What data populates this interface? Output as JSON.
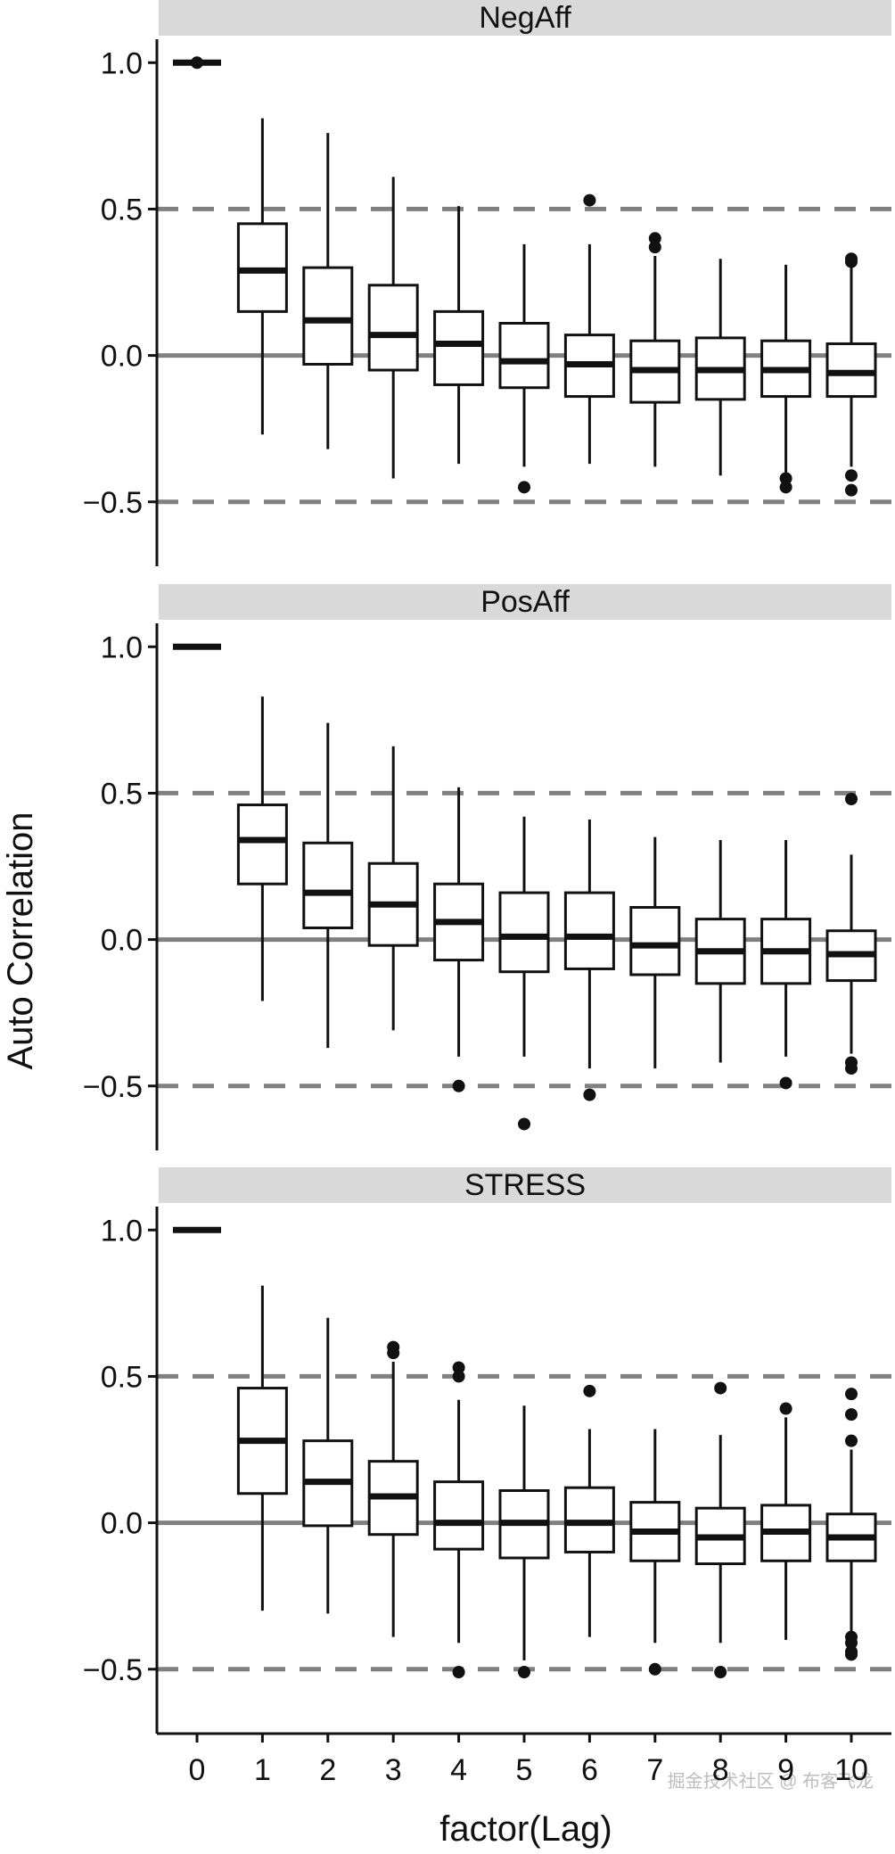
{
  "chart_data": {
    "type": "boxplot",
    "ylabel": "Auto Correlation",
    "xlabel": "factor(Lag)",
    "categories": [
      "0",
      "1",
      "2",
      "3",
      "4",
      "5",
      "6",
      "7",
      "8",
      "9",
      "10"
    ],
    "ylim": [
      -0.72,
      1.08
    ],
    "yticks": [
      -0.5,
      0.0,
      0.5,
      1.0
    ],
    "ytick_labels": [
      "−0.5",
      "0.0",
      "0.5",
      "1.0"
    ],
    "reference_lines": [
      {
        "y": 0.5,
        "style": "dashed"
      },
      {
        "y": -0.5,
        "style": "dashed"
      },
      {
        "y": 0.0,
        "style": "solid"
      }
    ],
    "panels": [
      {
        "title": "NegAff",
        "boxes": [
          {
            "lag": "0",
            "whisker_low": 1.0,
            "q1": 1.0,
            "median": 1.0,
            "q3": 1.0,
            "whisker_high": 1.0,
            "outliers": [
              1.0
            ]
          },
          {
            "lag": "1",
            "whisker_low": -0.27,
            "q1": 0.15,
            "median": 0.29,
            "q3": 0.45,
            "whisker_high": 0.81,
            "outliers": []
          },
          {
            "lag": "2",
            "whisker_low": -0.32,
            "q1": -0.03,
            "median": 0.12,
            "q3": 0.3,
            "whisker_high": 0.76,
            "outliers": []
          },
          {
            "lag": "3",
            "whisker_low": -0.42,
            "q1": -0.05,
            "median": 0.07,
            "q3": 0.24,
            "whisker_high": 0.61,
            "outliers": []
          },
          {
            "lag": "4",
            "whisker_low": -0.37,
            "q1": -0.1,
            "median": 0.04,
            "q3": 0.15,
            "whisker_high": 0.51,
            "outliers": []
          },
          {
            "lag": "5",
            "whisker_low": -0.38,
            "q1": -0.11,
            "median": -0.02,
            "q3": 0.11,
            "whisker_high": 0.38,
            "outliers": [
              -0.45
            ]
          },
          {
            "lag": "6",
            "whisker_low": -0.37,
            "q1": -0.14,
            "median": -0.03,
            "q3": 0.07,
            "whisker_high": 0.38,
            "outliers": [
              0.53
            ]
          },
          {
            "lag": "7",
            "whisker_low": -0.38,
            "q1": -0.16,
            "median": -0.05,
            "q3": 0.05,
            "whisker_high": 0.34,
            "outliers": [
              0.4,
              0.37
            ]
          },
          {
            "lag": "8",
            "whisker_low": -0.41,
            "q1": -0.15,
            "median": -0.05,
            "q3": 0.06,
            "whisker_high": 0.33,
            "outliers": []
          },
          {
            "lag": "9",
            "whisker_low": -0.4,
            "q1": -0.14,
            "median": -0.05,
            "q3": 0.05,
            "whisker_high": 0.31,
            "outliers": [
              -0.42,
              -0.45
            ]
          },
          {
            "lag": "10",
            "whisker_low": -0.38,
            "q1": -0.14,
            "median": -0.06,
            "q3": 0.04,
            "whisker_high": 0.31,
            "outliers": [
              0.32,
              0.33,
              -0.41,
              -0.46
            ]
          }
        ]
      },
      {
        "title": "PosAff",
        "boxes": [
          {
            "lag": "0",
            "whisker_low": 1.0,
            "q1": 1.0,
            "median": 1.0,
            "q3": 1.0,
            "whisker_high": 1.0,
            "outliers": []
          },
          {
            "lag": "1",
            "whisker_low": -0.21,
            "q1": 0.19,
            "median": 0.34,
            "q3": 0.46,
            "whisker_high": 0.83,
            "outliers": []
          },
          {
            "lag": "2",
            "whisker_low": -0.37,
            "q1": 0.04,
            "median": 0.16,
            "q3": 0.33,
            "whisker_high": 0.74,
            "outliers": []
          },
          {
            "lag": "3",
            "whisker_low": -0.31,
            "q1": -0.02,
            "median": 0.12,
            "q3": 0.26,
            "whisker_high": 0.66,
            "outliers": []
          },
          {
            "lag": "4",
            "whisker_low": -0.4,
            "q1": -0.07,
            "median": 0.06,
            "q3": 0.19,
            "whisker_high": 0.52,
            "outliers": [
              -0.5
            ]
          },
          {
            "lag": "5",
            "whisker_low": -0.4,
            "q1": -0.11,
            "median": 0.01,
            "q3": 0.16,
            "whisker_high": 0.42,
            "outliers": [
              -0.63
            ]
          },
          {
            "lag": "6",
            "whisker_low": -0.44,
            "q1": -0.1,
            "median": 0.01,
            "q3": 0.16,
            "whisker_high": 0.41,
            "outliers": [
              -0.53
            ]
          },
          {
            "lag": "7",
            "whisker_low": -0.44,
            "q1": -0.12,
            "median": -0.02,
            "q3": 0.11,
            "whisker_high": 0.35,
            "outliers": []
          },
          {
            "lag": "8",
            "whisker_low": -0.42,
            "q1": -0.15,
            "median": -0.04,
            "q3": 0.07,
            "whisker_high": 0.34,
            "outliers": []
          },
          {
            "lag": "9",
            "whisker_low": -0.4,
            "q1": -0.15,
            "median": -0.04,
            "q3": 0.07,
            "whisker_high": 0.34,
            "outliers": [
              -0.49
            ]
          },
          {
            "lag": "10",
            "whisker_low": -0.39,
            "q1": -0.14,
            "median": -0.05,
            "q3": 0.03,
            "whisker_high": 0.29,
            "outliers": [
              0.48,
              -0.42,
              -0.44
            ]
          }
        ]
      },
      {
        "title": "STRESS",
        "boxes": [
          {
            "lag": "0",
            "whisker_low": 1.0,
            "q1": 1.0,
            "median": 1.0,
            "q3": 1.0,
            "whisker_high": 1.0,
            "outliers": []
          },
          {
            "lag": "1",
            "whisker_low": -0.3,
            "q1": 0.1,
            "median": 0.28,
            "q3": 0.46,
            "whisker_high": 0.81,
            "outliers": []
          },
          {
            "lag": "2",
            "whisker_low": -0.31,
            "q1": -0.01,
            "median": 0.14,
            "q3": 0.28,
            "whisker_high": 0.7,
            "outliers": []
          },
          {
            "lag": "3",
            "whisker_low": -0.39,
            "q1": -0.04,
            "median": 0.09,
            "q3": 0.21,
            "whisker_high": 0.55,
            "outliers": [
              0.6,
              0.58
            ]
          },
          {
            "lag": "4",
            "whisker_low": -0.41,
            "q1": -0.09,
            "median": 0.0,
            "q3": 0.14,
            "whisker_high": 0.42,
            "outliers": [
              0.53,
              0.5,
              -0.51
            ]
          },
          {
            "lag": "5",
            "whisker_low": -0.47,
            "q1": -0.12,
            "median": 0.0,
            "q3": 0.11,
            "whisker_high": 0.4,
            "outliers": [
              -0.51
            ]
          },
          {
            "lag": "6",
            "whisker_low": -0.39,
            "q1": -0.1,
            "median": 0.0,
            "q3": 0.12,
            "whisker_high": 0.32,
            "outliers": [
              0.45
            ]
          },
          {
            "lag": "7",
            "whisker_low": -0.41,
            "q1": -0.13,
            "median": -0.03,
            "q3": 0.07,
            "whisker_high": 0.32,
            "outliers": [
              -0.5
            ]
          },
          {
            "lag": "8",
            "whisker_low": -0.41,
            "q1": -0.14,
            "median": -0.05,
            "q3": 0.05,
            "whisker_high": 0.3,
            "outliers": [
              0.46,
              -0.51
            ]
          },
          {
            "lag": "9",
            "whisker_low": -0.4,
            "q1": -0.13,
            "median": -0.03,
            "q3": 0.06,
            "whisker_high": 0.36,
            "outliers": [
              0.39
            ]
          },
          {
            "lag": "10",
            "whisker_low": -0.37,
            "q1": -0.13,
            "median": -0.05,
            "q3": 0.03,
            "whisker_high": 0.25,
            "outliers": [
              0.44,
              0.37,
              0.28,
              -0.39,
              -0.41,
              -0.44,
              -0.45
            ]
          }
        ]
      }
    ]
  },
  "watermark": "掘金技术社区 @ 布客飞龙"
}
